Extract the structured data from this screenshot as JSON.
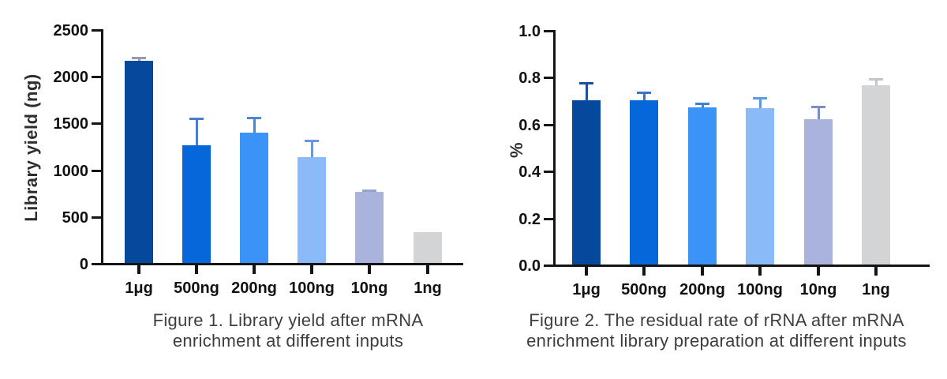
{
  "chart_data": [
    {
      "type": "bar",
      "figure_label": "Figure 1",
      "caption_line1": "Figure 1. Library yield after mRNA",
      "caption_line2": "enrichment at different inputs",
      "xlabel": "",
      "ylabel": "Library yield (ng)",
      "categories": [
        "1μg",
        "500ng",
        "200ng",
        "100ng",
        "10ng",
        "1ng"
      ],
      "values": [
        2160,
        1255,
        1390,
        1130,
        760,
        330
      ],
      "errors_upper": [
        40,
        290,
        160,
        175,
        20,
        0
      ],
      "ylim": [
        0,
        2500
      ],
      "ytick_step": 500,
      "ytick_labels": [
        "0",
        "500",
        "1000",
        "1500",
        "2000",
        "2500"
      ],
      "bar_colors": [
        "#05499c",
        "#0567d9",
        "#3b93f7",
        "#8abaf7",
        "#aab3dc",
        "#d3d4d6"
      ],
      "error_colors": [
        "#949cb0",
        "#4a7bd0",
        "#4a85d8",
        "#6b97dd",
        "#97a3cf",
        "#c8c9cc"
      ],
      "grid": false,
      "legend": "none"
    },
    {
      "type": "bar",
      "figure_label": "Figure 2",
      "caption_line1": "Figure 2. The residual rate of rRNA after mRNA",
      "caption_line2": "enrichment library preparation at different inputs",
      "xlabel": "",
      "ylabel": "%",
      "categories": [
        "1μg",
        "500ng",
        "200ng",
        "100ng",
        "10ng",
        "1ng"
      ],
      "values": [
        0.7,
        0.7,
        0.67,
        0.665,
        0.62,
        0.765
      ],
      "errors_upper": [
        0.075,
        0.033,
        0.018,
        0.045,
        0.055,
        0.025
      ],
      "ylim": [
        0,
        1.0
      ],
      "ytick_step": 0.2,
      "ytick_labels": [
        "0.0",
        "0.2",
        "0.4",
        "0.6",
        "0.8",
        "1.0"
      ],
      "bar_colors": [
        "#05499c",
        "#0567d9",
        "#3b93f7",
        "#8abaf7",
        "#aab3dc",
        "#d3d4d6"
      ],
      "error_colors": [
        "#1c4d9e",
        "#3c72cc",
        "#3c82d8",
        "#5e97e2",
        "#7d8fc9",
        "#c4c5c8"
      ],
      "grid": false,
      "legend": "none"
    }
  ]
}
